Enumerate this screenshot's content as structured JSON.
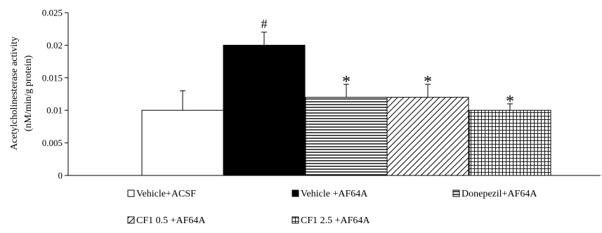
{
  "chart_data": {
    "type": "bar",
    "ylabel_line1": "Acetylcholinesterase activity",
    "ylabel_line2": "(nM/min/g protein)",
    "ylim": [
      0,
      0.025
    ],
    "yticks": [
      "0",
      "0.005",
      "0.01",
      "0.015",
      "0.02",
      "0.025"
    ],
    "grid": false,
    "legend_position": "bottom",
    "series": [
      {
        "name": "Vehicle+ACSF",
        "value": 0.01,
        "error": 0.003,
        "pattern": "white",
        "annotation": ""
      },
      {
        "name": "Vehicle +AF64A",
        "value": 0.02,
        "error": 0.002,
        "pattern": "black",
        "annotation": "#"
      },
      {
        "name": "Donepezil+AF64A",
        "value": 0.012,
        "error": 0.002,
        "pattern": "horizontal-lines",
        "annotation": "*"
      },
      {
        "name": "CF1 0.5 +AF64A",
        "value": 0.012,
        "error": 0.002,
        "pattern": "diagonal-lines",
        "annotation": "*"
      },
      {
        "name": "CF1 2.5 +AF64A",
        "value": 0.01,
        "error": 0.001,
        "pattern": "grid",
        "annotation": "*"
      }
    ]
  }
}
